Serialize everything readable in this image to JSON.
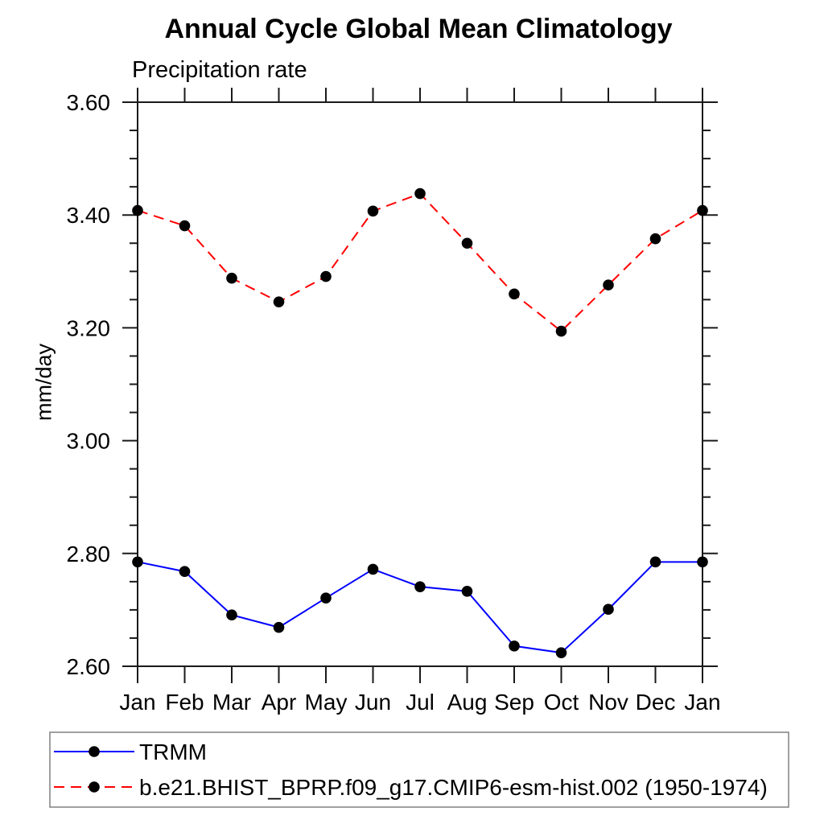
{
  "title": "Annual Cycle Global Mean Climatology",
  "subtitle": "Precipitation rate",
  "ylabel": "mm/day",
  "chart_data": {
    "type": "line",
    "categories": [
      "Jan",
      "Feb",
      "Mar",
      "Apr",
      "May",
      "Jun",
      "Jul",
      "Aug",
      "Sep",
      "Oct",
      "Nov",
      "Dec",
      "Jan"
    ],
    "series": [
      {
        "name": "TRMM",
        "color": "#0000ff",
        "line_style": "solid",
        "marker": "filled-circle",
        "marker_color": "#000000",
        "values": [
          2.785,
          2.768,
          2.691,
          2.669,
          2.721,
          2.772,
          2.741,
          2.733,
          2.636,
          2.624,
          2.701,
          2.785,
          2.785
        ]
      },
      {
        "name": "b.e21.BHIST_BPRP.f09_g17.CMIP6-esm-hist.002 (1950-1974)",
        "color": "#ff0000",
        "line_style": "dashed",
        "marker": "filled-circle",
        "marker_color": "#000000",
        "values": [
          3.408,
          3.381,
          3.288,
          3.246,
          3.291,
          3.407,
          3.438,
          3.35,
          3.26,
          3.194,
          3.276,
          3.358,
          3.408
        ]
      }
    ],
    "ylim": [
      2.6,
      3.6
    ],
    "ytick_values": [
      2.6,
      2.8,
      3.0,
      3.2,
      3.4,
      3.6
    ],
    "ytick_labels": [
      "2.60",
      "2.80",
      "3.00",
      "3.20",
      "3.40",
      "3.60"
    ],
    "minor_tick_step": 0.05,
    "grid": false,
    "legend_position": "bottom-left-box",
    "axis_color": "#1a1a1a",
    "legend_border_color": "#808080"
  }
}
